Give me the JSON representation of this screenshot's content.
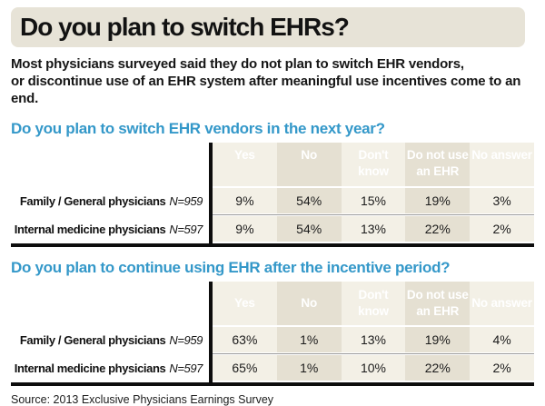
{
  "header": {
    "title": "Do you plan to switch EHRs?",
    "subtitle_line1": "Most physicians surveyed said they do not plan to switch EHR vendors,",
    "subtitle_line2": "or discontinue use of an EHR system after meaningful use incentives come to an end."
  },
  "colors": {
    "title_bar_bg": "#e7e3d7",
    "table_header_bg": "#57575a",
    "cell_light": "#f3f0e6",
    "cell_dark": "#e5e0d2",
    "question_blue": "#3498c9",
    "rule_black": "#0d0d0d"
  },
  "tables": [
    {
      "question": "Do you plan to switch EHR vendors in the next year?",
      "columns": [
        "Yes",
        "No",
        "Don't\nknow",
        "Do not use\nan EHR",
        "No answer"
      ],
      "rows": [
        {
          "label": "Family / General physicians",
          "n": "N=959",
          "values": [
            "9%",
            "54%",
            "15%",
            "19%",
            "3%"
          ]
        },
        {
          "label": "Internal medicine physicians",
          "n": "N=597",
          "values": [
            "9%",
            "54%",
            "13%",
            "22%",
            "2%"
          ]
        }
      ]
    },
    {
      "question": "Do you plan to continue using EHR after the incentive period?",
      "columns": [
        "Yes",
        "No",
        "Don't\nknow",
        "Do not use\nan EHR",
        "No answer"
      ],
      "rows": [
        {
          "label": "Family / General physicians",
          "n": "N=959",
          "values": [
            "63%",
            "1%",
            "13%",
            "19%",
            "4%"
          ]
        },
        {
          "label": "Internal medicine physicians",
          "n": "N=597",
          "values": [
            "65%",
            "1%",
            "10%",
            "22%",
            "2%"
          ]
        }
      ]
    }
  ],
  "source": "Source: 2013 Exclusive Physicians Earnings Survey",
  "chart_data": [
    {
      "type": "table",
      "title": "Do you plan to switch EHR vendors in the next year?",
      "columns": [
        "Yes",
        "No",
        "Don't know",
        "Do not use an EHR",
        "No answer"
      ],
      "rows": [
        {
          "label": "Family / General physicians",
          "n": 959,
          "values_pct": [
            9,
            54,
            15,
            19,
            3
          ]
        },
        {
          "label": "Internal medicine physicians",
          "n": 597,
          "values_pct": [
            9,
            54,
            13,
            22,
            2
          ]
        }
      ]
    },
    {
      "type": "table",
      "title": "Do you plan to continue using EHR after the incentive period?",
      "columns": [
        "Yes",
        "No",
        "Don't know",
        "Do not use an EHR",
        "No answer"
      ],
      "rows": [
        {
          "label": "Family / General physicians",
          "n": 959,
          "values_pct": [
            63,
            1,
            13,
            19,
            4
          ]
        },
        {
          "label": "Internal medicine physicians",
          "n": 597,
          "values_pct": [
            65,
            1,
            10,
            22,
            2
          ]
        }
      ]
    }
  ]
}
